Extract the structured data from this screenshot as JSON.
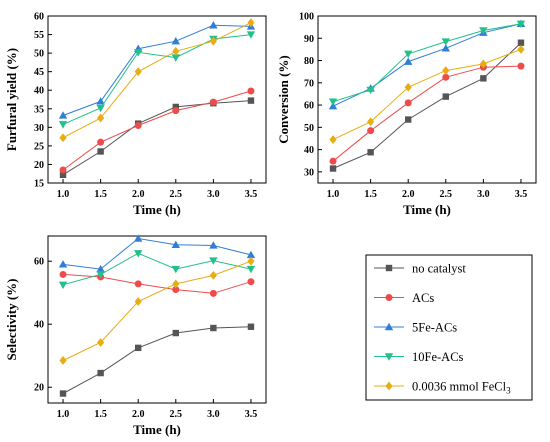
{
  "chart_data": [
    {
      "type": "line",
      "xlabel": "Time (h)",
      "ylabel": "Furfural yield (%)",
      "xlim": [
        0.8,
        3.7
      ],
      "ylim": [
        15,
        60
      ],
      "xticks": [
        1.0,
        1.5,
        2.0,
        2.5,
        3.0,
        3.5
      ],
      "yticks": [
        15,
        20,
        25,
        30,
        35,
        40,
        45,
        50,
        55,
        60
      ],
      "x": [
        1.0,
        1.5,
        2.0,
        2.5,
        3.0,
        3.5
      ],
      "series": [
        {
          "name": "no catalyst",
          "values": [
            17.2,
            23.5,
            31.0,
            35.5,
            36.5,
            37.2
          ]
        },
        {
          "name": "ACs",
          "values": [
            18.5,
            26.0,
            30.5,
            34.5,
            36.8,
            39.8
          ]
        },
        {
          "name": "5Fe-ACs",
          "values": [
            33.2,
            37.0,
            51.2,
            53.2,
            57.5,
            57.2
          ]
        },
        {
          "name": "10Fe-ACs",
          "values": [
            30.8,
            35.2,
            50.2,
            48.8,
            53.8,
            55.0
          ]
        },
        {
          "name": "0.0036 mmol FeCl3",
          "values": [
            27.2,
            32.5,
            45.0,
            50.5,
            53.2,
            58.2
          ]
        }
      ]
    },
    {
      "type": "line",
      "xlabel": "Time (h)",
      "ylabel": "Conversion (%)",
      "xlim": [
        0.8,
        3.7
      ],
      "ylim": [
        25,
        100
      ],
      "xticks": [
        1.0,
        1.5,
        2.0,
        2.5,
        3.0,
        3.5
      ],
      "yticks": [
        30,
        40,
        50,
        60,
        70,
        80,
        90,
        100
      ],
      "x": [
        1.0,
        1.5,
        2.0,
        2.5,
        3.0,
        3.5
      ],
      "series": [
        {
          "name": "no catalyst",
          "values": [
            31.5,
            38.8,
            53.5,
            63.8,
            72.0,
            88.0
          ]
        },
        {
          "name": "ACs",
          "values": [
            34.8,
            48.5,
            61.0,
            72.5,
            77.0,
            77.5
          ]
        },
        {
          "name": "5Fe-ACs",
          "values": [
            59.5,
            67.5,
            79.5,
            85.5,
            92.5,
            96.5
          ]
        },
        {
          "name": "10Fe-ACs",
          "values": [
            61.5,
            66.8,
            83.0,
            88.5,
            93.5,
            96.5
          ]
        },
        {
          "name": "0.0036 mmol FeCl3",
          "values": [
            44.5,
            52.5,
            68.0,
            75.5,
            78.5,
            85.0
          ]
        }
      ]
    },
    {
      "type": "line",
      "xlabel": "Time (h)",
      "ylabel": "Selectivity (%)",
      "xlim": [
        0.8,
        3.7
      ],
      "ylim": [
        15,
        68
      ],
      "xticks": [
        1.0,
        1.5,
        2.0,
        2.5,
        3.0,
        3.5
      ],
      "yticks": [
        20,
        40,
        60
      ],
      "x": [
        1.0,
        1.5,
        2.0,
        2.5,
        3.0,
        3.5
      ],
      "series": [
        {
          "name": "no catalyst",
          "values": [
            18.0,
            24.5,
            32.5,
            37.2,
            38.8,
            39.2
          ]
        },
        {
          "name": "ACs",
          "values": [
            55.8,
            55.0,
            52.8,
            51.0,
            49.8,
            53.5
          ]
        },
        {
          "name": "5Fe-ACs",
          "values": [
            59.0,
            57.5,
            67.2,
            65.2,
            65.0,
            62.0
          ]
        },
        {
          "name": "10Fe-ACs",
          "values": [
            52.5,
            55.8,
            62.5,
            57.5,
            60.2,
            57.5
          ]
        },
        {
          "name": "0.0036 mmol FeCl3",
          "values": [
            28.5,
            34.2,
            47.2,
            52.8,
            55.5,
            60.0
          ]
        }
      ]
    }
  ],
  "styles": [
    {
      "color": "#555555",
      "marker": "square"
    },
    {
      "color": "#ee4b4b",
      "marker": "circle"
    },
    {
      "color": "#2f7fd8",
      "marker": "triangle-up"
    },
    {
      "color": "#22c08a",
      "marker": "triangle-down"
    },
    {
      "color": "#e7ad12",
      "marker": "diamond"
    }
  ],
  "legend": {
    "items": [
      "no catalyst",
      "ACs",
      "5Fe-ACs",
      "10Fe-ACs",
      "0.0036 mmol FeCl"
    ],
    "last_subscript": "3"
  }
}
